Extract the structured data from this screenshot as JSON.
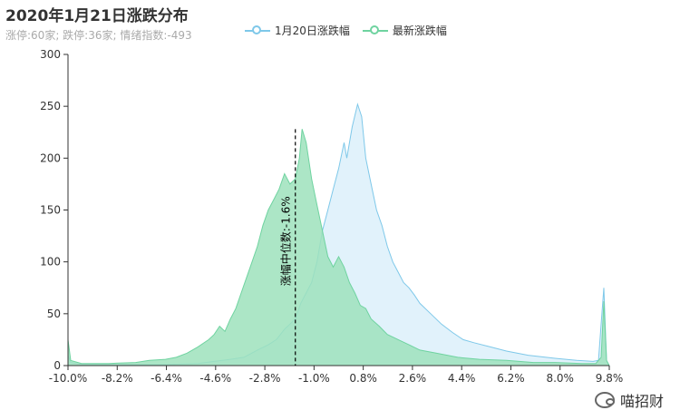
{
  "header": {
    "title": "2020年1月21日涨跌分布",
    "subtitle": "涨停:60家; 跌停:36家; 情绪指数:-493"
  },
  "watermark": {
    "text": "喵招财",
    "icon": "wechat-icon"
  },
  "chart_data": {
    "type": "area",
    "title": "2020年1月21日涨跌分布",
    "subtitle": "涨停:60家; 跌停:36家; 情绪指数:-493",
    "x_tick_labels": [
      "-10.0%",
      "-8.2%",
      "-6.4%",
      "-4.6%",
      "-2.8%",
      "-1.0%",
      "0.8%",
      "2.6%",
      "4.4%",
      "6.2%",
      "8.0%",
      "9.8%"
    ],
    "xlim": [
      -10.0,
      10.0
    ],
    "y_tick_labels": [
      "0",
      "50",
      "100",
      "150",
      "200",
      "250",
      "300"
    ],
    "ylim": [
      0,
      300
    ],
    "grid": false,
    "legend_position": "top-center",
    "median": {
      "x": -1.6,
      "label": "涨幅中位数:-1.6%"
    },
    "series": [
      {
        "name": "1月20日涨跌幅",
        "color": "#7ec8e9",
        "fill": "#dcf0fa",
        "points": [
          [
            -10.0,
            10
          ],
          [
            -9.9,
            3
          ],
          [
            -9.5,
            1
          ],
          [
            -8.0,
            1
          ],
          [
            -6.4,
            1
          ],
          [
            -5.2,
            2
          ],
          [
            -4.6,
            4
          ],
          [
            -4.0,
            6
          ],
          [
            -3.5,
            8
          ],
          [
            -3.0,
            15
          ],
          [
            -2.6,
            20
          ],
          [
            -2.3,
            25
          ],
          [
            -2.0,
            35
          ],
          [
            -1.8,
            40
          ],
          [
            -1.6,
            45
          ],
          [
            -1.4,
            60
          ],
          [
            -1.2,
            70
          ],
          [
            -1.0,
            80
          ],
          [
            -0.8,
            100
          ],
          [
            -0.6,
            130
          ],
          [
            -0.4,
            150
          ],
          [
            -0.2,
            170
          ],
          [
            0.0,
            190
          ],
          [
            0.2,
            215
          ],
          [
            0.3,
            200
          ],
          [
            0.5,
            230
          ],
          [
            0.7,
            252
          ],
          [
            0.85,
            240
          ],
          [
            1.0,
            200
          ],
          [
            1.2,
            175
          ],
          [
            1.4,
            150
          ],
          [
            1.6,
            135
          ],
          [
            1.8,
            115
          ],
          [
            2.0,
            100
          ],
          [
            2.2,
            90
          ],
          [
            2.4,
            80
          ],
          [
            2.6,
            75
          ],
          [
            2.8,
            68
          ],
          [
            3.0,
            60
          ],
          [
            3.4,
            50
          ],
          [
            3.8,
            40
          ],
          [
            4.2,
            32
          ],
          [
            4.6,
            25
          ],
          [
            5.0,
            22
          ],
          [
            5.6,
            18
          ],
          [
            6.2,
            14
          ],
          [
            7.0,
            10
          ],
          [
            8.0,
            7
          ],
          [
            8.8,
            5
          ],
          [
            9.4,
            4
          ],
          [
            9.6,
            5
          ],
          [
            9.7,
            40
          ],
          [
            9.8,
            75
          ],
          [
            9.9,
            5
          ],
          [
            10.0,
            0
          ]
        ]
      },
      {
        "name": "最新涨跌幅",
        "color": "#6fd3a0",
        "fill": "#9ee2bc",
        "points": [
          [
            -10.0,
            25
          ],
          [
            -9.9,
            5
          ],
          [
            -9.5,
            2
          ],
          [
            -8.5,
            2
          ],
          [
            -7.5,
            3
          ],
          [
            -7.0,
            5
          ],
          [
            -6.4,
            6
          ],
          [
            -6.0,
            8
          ],
          [
            -5.6,
            12
          ],
          [
            -5.2,
            18
          ],
          [
            -4.8,
            25
          ],
          [
            -4.6,
            30
          ],
          [
            -4.4,
            38
          ],
          [
            -4.2,
            33
          ],
          [
            -4.0,
            45
          ],
          [
            -3.8,
            55
          ],
          [
            -3.6,
            70
          ],
          [
            -3.4,
            85
          ],
          [
            -3.2,
            100
          ],
          [
            -3.0,
            115
          ],
          [
            -2.8,
            135
          ],
          [
            -2.6,
            150
          ],
          [
            -2.4,
            160
          ],
          [
            -2.2,
            170
          ],
          [
            -2.0,
            185
          ],
          [
            -1.8,
            175
          ],
          [
            -1.6,
            180
          ],
          [
            -1.45,
            200
          ],
          [
            -1.35,
            228
          ],
          [
            -1.2,
            215
          ],
          [
            -1.0,
            180
          ],
          [
            -0.8,
            155
          ],
          [
            -0.6,
            130
          ],
          [
            -0.4,
            105
          ],
          [
            -0.2,
            95
          ],
          [
            0.0,
            105
          ],
          [
            0.2,
            95
          ],
          [
            0.4,
            80
          ],
          [
            0.6,
            70
          ],
          [
            0.8,
            58
          ],
          [
            1.0,
            55
          ],
          [
            1.2,
            45
          ],
          [
            1.5,
            38
          ],
          [
            1.8,
            30
          ],
          [
            2.2,
            25
          ],
          [
            2.6,
            20
          ],
          [
            3.0,
            15
          ],
          [
            3.6,
            12
          ],
          [
            4.4,
            8
          ],
          [
            5.2,
            6
          ],
          [
            6.2,
            5
          ],
          [
            7.2,
            3
          ],
          [
            8.0,
            3
          ],
          [
            9.0,
            2
          ],
          [
            9.5,
            2
          ],
          [
            9.7,
            8
          ],
          [
            9.8,
            62
          ],
          [
            9.9,
            5
          ],
          [
            10.0,
            0
          ]
        ]
      }
    ]
  }
}
